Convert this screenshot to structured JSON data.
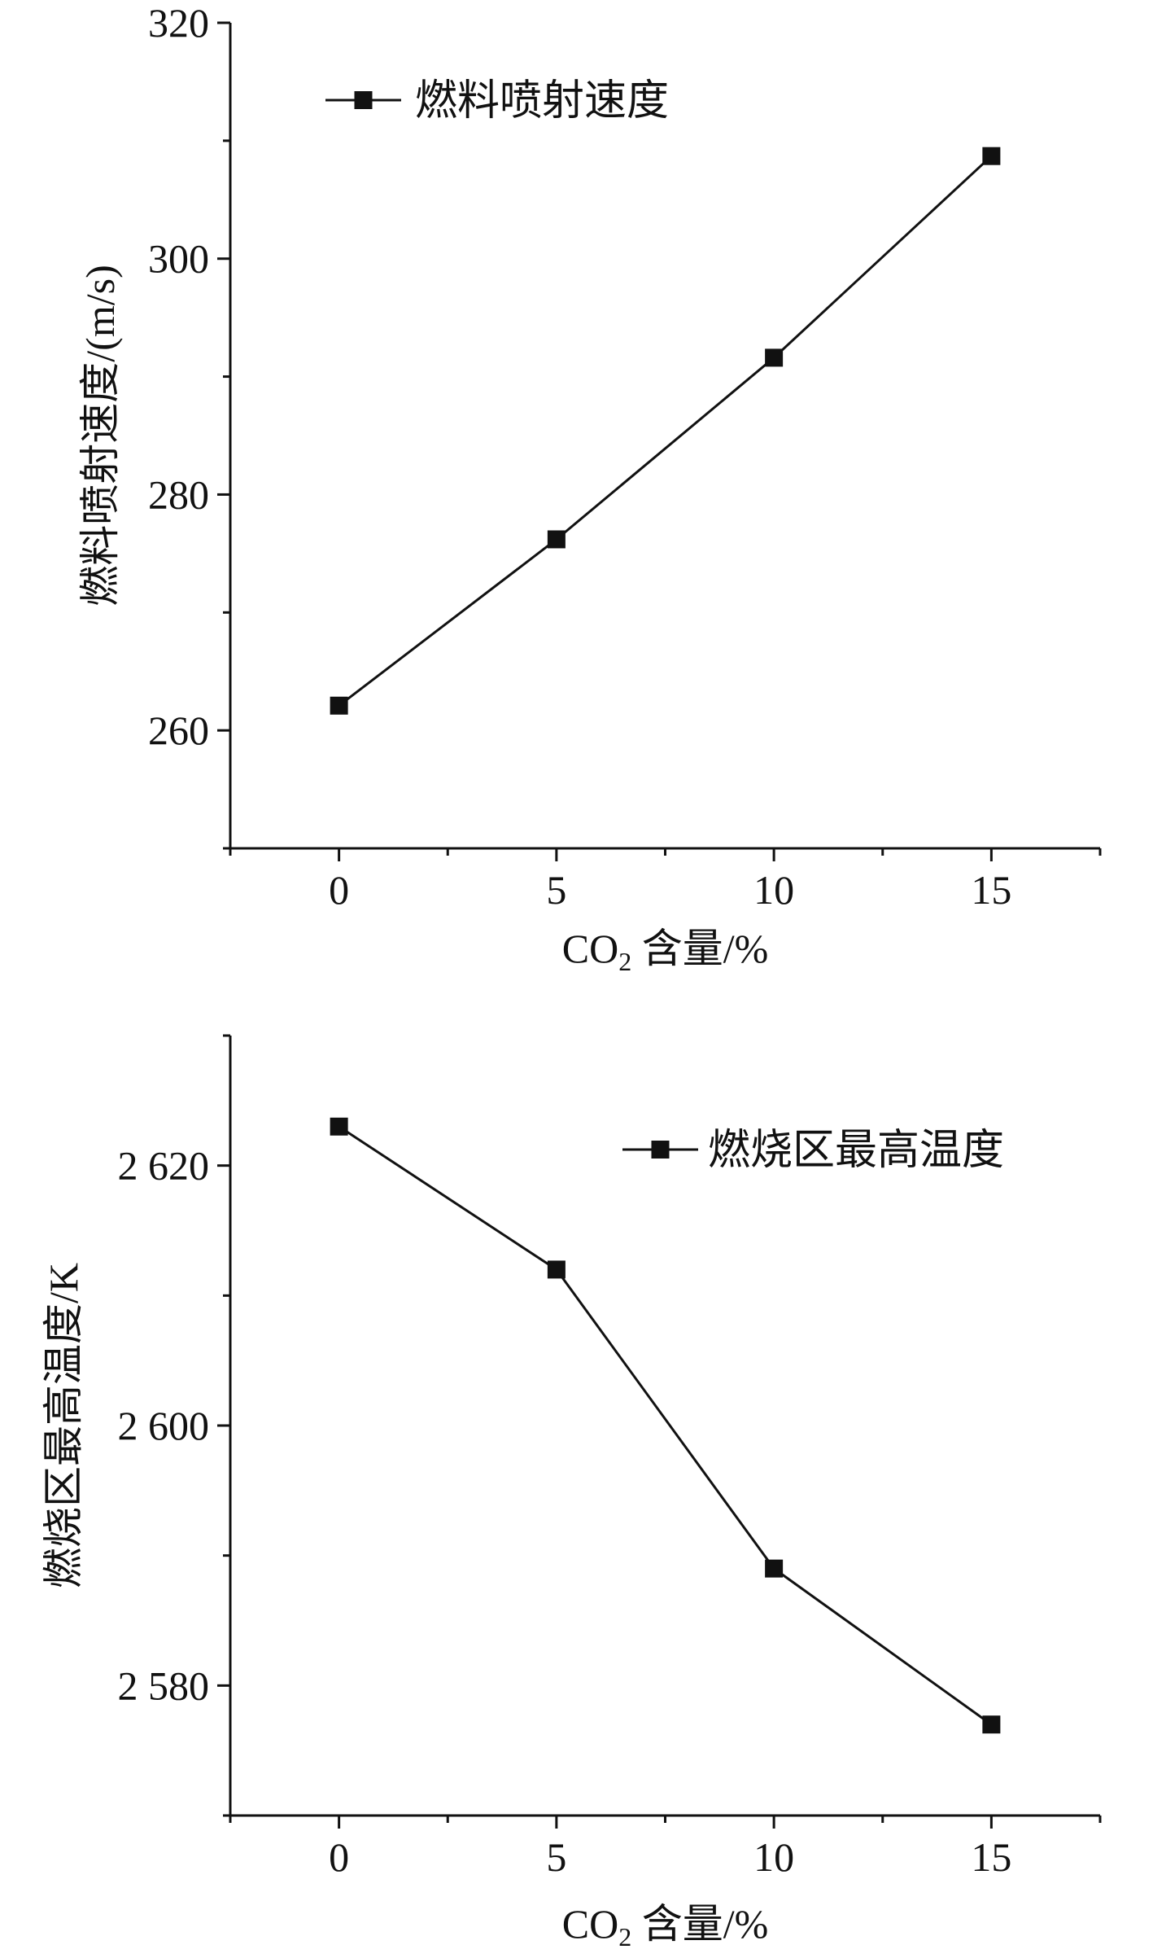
{
  "chart_data": [
    {
      "type": "line",
      "x": [
        0,
        5,
        10,
        15
      ],
      "xlim": [
        -2.5,
        17.5
      ],
      "ylim": [
        250,
        320
      ],
      "xticks": [
        0,
        5,
        10,
        15
      ],
      "yticks": [
        260,
        280,
        300,
        320
      ],
      "ytick_labels": [
        "260",
        "280",
        "300",
        "320"
      ],
      "xlabel": "CO2 含量/%",
      "ylabel": "燃料喷射速度/(m/s)",
      "series": [
        {
          "name": "燃料喷射速度",
          "values": [
            262.1,
            276.2,
            291.6,
            308.7
          ],
          "marker": "square",
          "color": "#111111"
        }
      ],
      "legend": "top-left",
      "grid": false
    },
    {
      "type": "line",
      "x": [
        0,
        5,
        10,
        15
      ],
      "xlim": [
        -2.5,
        17.5
      ],
      "ylim": [
        2570,
        2630
      ],
      "xticks": [
        0,
        5,
        10,
        15
      ],
      "yticks": [
        2580,
        2600,
        2620
      ],
      "ytick_labels": [
        "2 580",
        "2 600",
        "2 620"
      ],
      "xlabel": "CO2 含量/%",
      "ylabel": "燃烧区最高温度/K",
      "series": [
        {
          "name": "燃烧区最高温度",
          "values": [
            2623.0,
            2612.0,
            2589.0,
            2577.0
          ],
          "marker": "square",
          "color": "#111111"
        }
      ],
      "legend": "top-right",
      "grid": false
    }
  ]
}
